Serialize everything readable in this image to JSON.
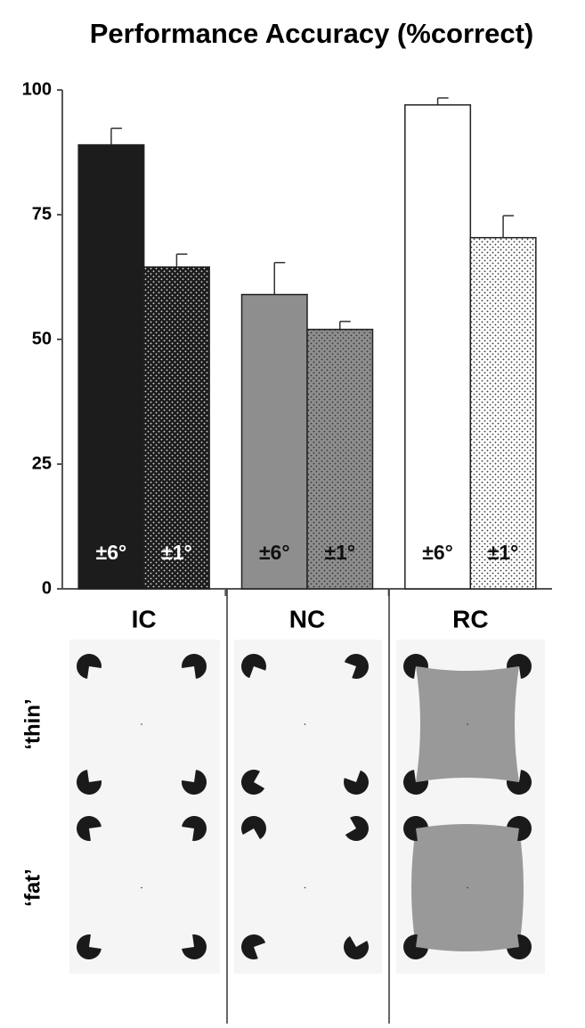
{
  "chart_data": {
    "type": "bar",
    "title": "Performance Accuracy (%correct)",
    "categories": [
      "IC",
      "NC",
      "RC"
    ],
    "category_colors": [
      "#1c1c1c",
      "#8e8e8e",
      "#ffffff"
    ],
    "series": [
      {
        "name": "±6°",
        "values": [
          89,
          59,
          97
        ],
        "errors": [
          3.3,
          6.4,
          1.4
        ]
      },
      {
        "name": "±1°",
        "values": [
          64.5,
          52,
          70.4
        ],
        "errors": [
          2.6,
          1.6,
          4.4
        ],
        "dotted": true
      }
    ],
    "ylim": [
      0,
      100
    ],
    "yticks": [
      0,
      25,
      50,
      75,
      100
    ]
  },
  "stimuli": {
    "rows": [
      "‘thin’",
      "‘fat’"
    ]
  }
}
